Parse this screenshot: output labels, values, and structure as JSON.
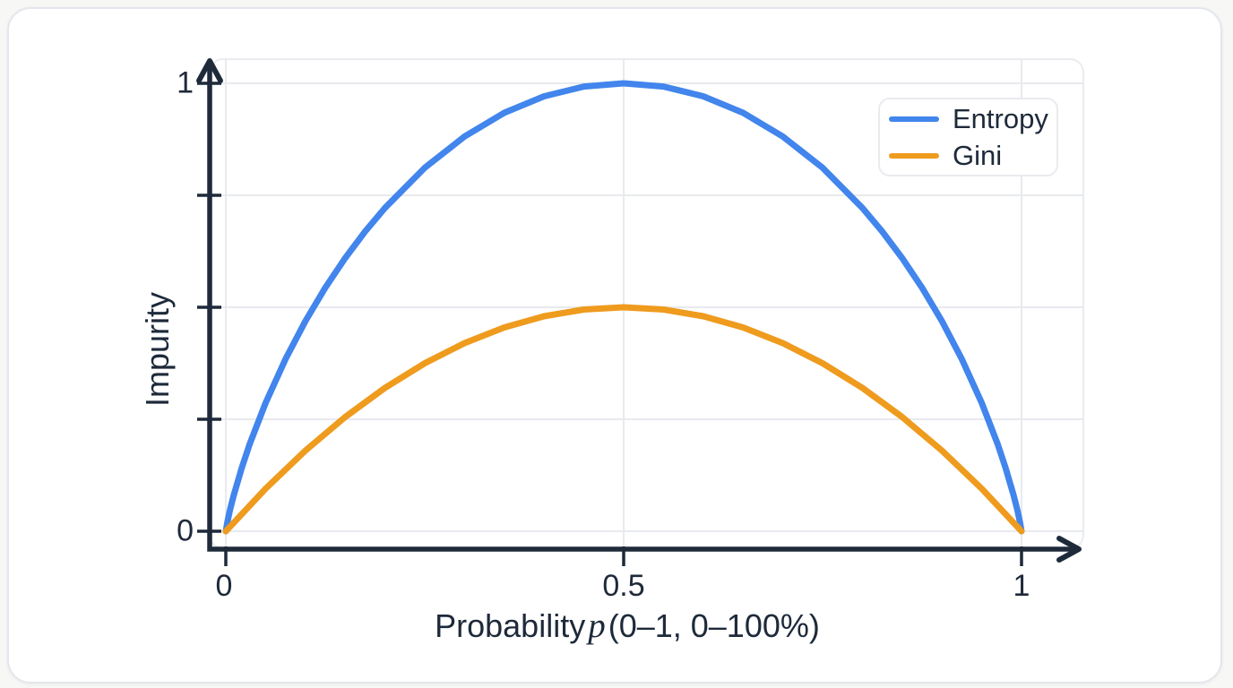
{
  "chart_data": {
    "type": "line",
    "title": "",
    "xlabel": "Probability p (0–1, 0–100%)",
    "ylabel": "Impurity",
    "xlim": [
      0,
      1
    ],
    "ylim": [
      0,
      1
    ],
    "grid_on": true,
    "x_ticks": {
      "values": [
        0,
        0.5,
        1
      ],
      "labels": [
        "0",
        "0.5",
        "1"
      ]
    },
    "y_ticks": {
      "values": [
        0,
        0.25,
        0.5,
        0.75,
        1
      ],
      "labels": [
        "0",
        "",
        "",
        "",
        "1"
      ]
    },
    "grid": {
      "x_values": [
        0,
        0.5,
        1
      ],
      "y_values": [
        0,
        0.25,
        0.5,
        0.75,
        1
      ]
    },
    "colors": {
      "grid": "#E8EAEE",
      "axis": "#1E2A3A"
    },
    "legend": {
      "position": "top-right",
      "entries": [
        {
          "label": "Entropy",
          "color": "#4285EC"
        },
        {
          "label": "Gini",
          "color": "#EE9B1E"
        }
      ]
    },
    "series": [
      {
        "name": "Entropy",
        "color": "#4285EC",
        "points": [
          [
            0,
            0
          ],
          [
            0.002,
            0.0208
          ],
          [
            0.005,
            0.0454
          ],
          [
            0.01,
            0.0808
          ],
          [
            0.02,
            0.1414
          ],
          [
            0.03,
            0.1944
          ],
          [
            0.05,
            0.2864
          ],
          [
            0.075,
            0.3843
          ],
          [
            0.1,
            0.469
          ],
          [
            0.125,
            0.5436
          ],
          [
            0.15,
            0.6098
          ],
          [
            0.175,
            0.669
          ],
          [
            0.2,
            0.7219
          ],
          [
            0.25,
            0.8113
          ],
          [
            0.3,
            0.8813
          ],
          [
            0.35,
            0.9341
          ],
          [
            0.4,
            0.971
          ],
          [
            0.45,
            0.9928
          ],
          [
            0.5,
            1
          ],
          [
            0.55,
            0.9928
          ],
          [
            0.6,
            0.971
          ],
          [
            0.65,
            0.9341
          ],
          [
            0.7,
            0.8813
          ],
          [
            0.75,
            0.8113
          ],
          [
            0.8,
            0.7219
          ],
          [
            0.825,
            0.669
          ],
          [
            0.85,
            0.6098
          ],
          [
            0.875,
            0.5436
          ],
          [
            0.9,
            0.469
          ],
          [
            0.925,
            0.3843
          ],
          [
            0.95,
            0.2864
          ],
          [
            0.97,
            0.1944
          ],
          [
            0.98,
            0.1414
          ],
          [
            0.99,
            0.0808
          ],
          [
            0.995,
            0.0454
          ],
          [
            0.998,
            0.0208
          ],
          [
            1,
            0
          ]
        ]
      },
      {
        "name": "Gini",
        "color": "#EE9B1E",
        "points": [
          [
            0,
            0
          ],
          [
            0.05,
            0.095
          ],
          [
            0.1,
            0.18
          ],
          [
            0.15,
            0.255
          ],
          [
            0.2,
            0.32
          ],
          [
            0.25,
            0.375
          ],
          [
            0.3,
            0.42
          ],
          [
            0.35,
            0.455
          ],
          [
            0.4,
            0.48
          ],
          [
            0.45,
            0.495
          ],
          [
            0.5,
            0.5
          ],
          [
            0.55,
            0.495
          ],
          [
            0.6,
            0.48
          ],
          [
            0.65,
            0.455
          ],
          [
            0.7,
            0.42
          ],
          [
            0.75,
            0.375
          ],
          [
            0.8,
            0.32
          ],
          [
            0.85,
            0.255
          ],
          [
            0.9,
            0.18
          ],
          [
            0.95,
            0.095
          ],
          [
            1,
            0
          ]
        ]
      }
    ]
  },
  "labels": {
    "x_title_prefix": "Probability",
    "x_title_var": "p",
    "x_title_suffix": "(0–1, 0–100%)",
    "y_axis_title": "Impurity"
  }
}
